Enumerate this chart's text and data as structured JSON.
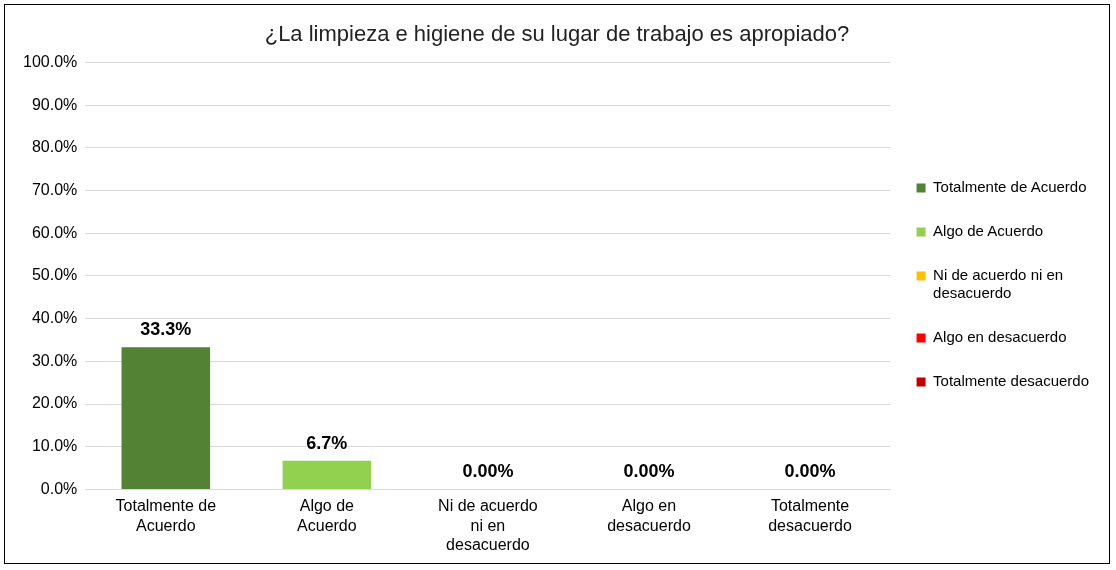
{
  "chart_data": {
    "type": "bar",
    "title": "¿La limpieza e higiene de su lugar de trabajo es apropiado?",
    "categories": [
      "Totalmente de Acuerdo",
      "Algo de Acuerdo",
      "Ni de acuerdo ni en desacuerdo",
      "Algo en desacuerdo",
      "Totalmente desacuerdo"
    ],
    "series": [
      {
        "name": "Totalmente de Acuerdo",
        "color": "#548235",
        "values": [
          33.3,
          null,
          null,
          null,
          null
        ],
        "value_labels": [
          "33.3%",
          null,
          null,
          null,
          null
        ]
      },
      {
        "name": "Algo de Acuerdo",
        "color": "#92d050",
        "values": [
          null,
          6.7,
          null,
          null,
          null
        ],
        "value_labels": [
          null,
          "6.7%",
          null,
          null,
          null
        ]
      },
      {
        "name": "Ni de acuerdo ni en desacuerdo",
        "color": "#ffc000",
        "values": [
          null,
          null,
          0,
          null,
          null
        ],
        "value_labels": [
          null,
          null,
          "0.00%",
          null,
          null
        ]
      },
      {
        "name": "Algo en desacuerdo",
        "color": "#ff0000",
        "values": [
          null,
          null,
          null,
          0,
          null
        ],
        "value_labels": [
          null,
          null,
          null,
          "0.00%",
          null
        ]
      },
      {
        "name": "Totalmente desacuerdo",
        "color": "#c00000",
        "values": [
          null,
          null,
          null,
          null,
          0
        ],
        "value_labels": [
          null,
          null,
          null,
          null,
          "0.00%"
        ]
      }
    ],
    "ylim": [
      0,
      100
    ],
    "yticks": [
      {
        "value": 0,
        "label": "0.0%"
      },
      {
        "value": 10,
        "label": "10.0%"
      },
      {
        "value": 20,
        "label": "20.0%"
      },
      {
        "value": 30,
        "label": "30.0%"
      },
      {
        "value": 40,
        "label": "40.0%"
      },
      {
        "value": 50,
        "label": "50.0%"
      },
      {
        "value": 60,
        "label": "60.0%"
      },
      {
        "value": 70,
        "label": "70.0%"
      },
      {
        "value": 80,
        "label": "80.0%"
      },
      {
        "value": 90,
        "label": "90.0%"
      },
      {
        "value": 100,
        "label": "100.0%"
      }
    ],
    "grid": "y",
    "legend": "right"
  }
}
